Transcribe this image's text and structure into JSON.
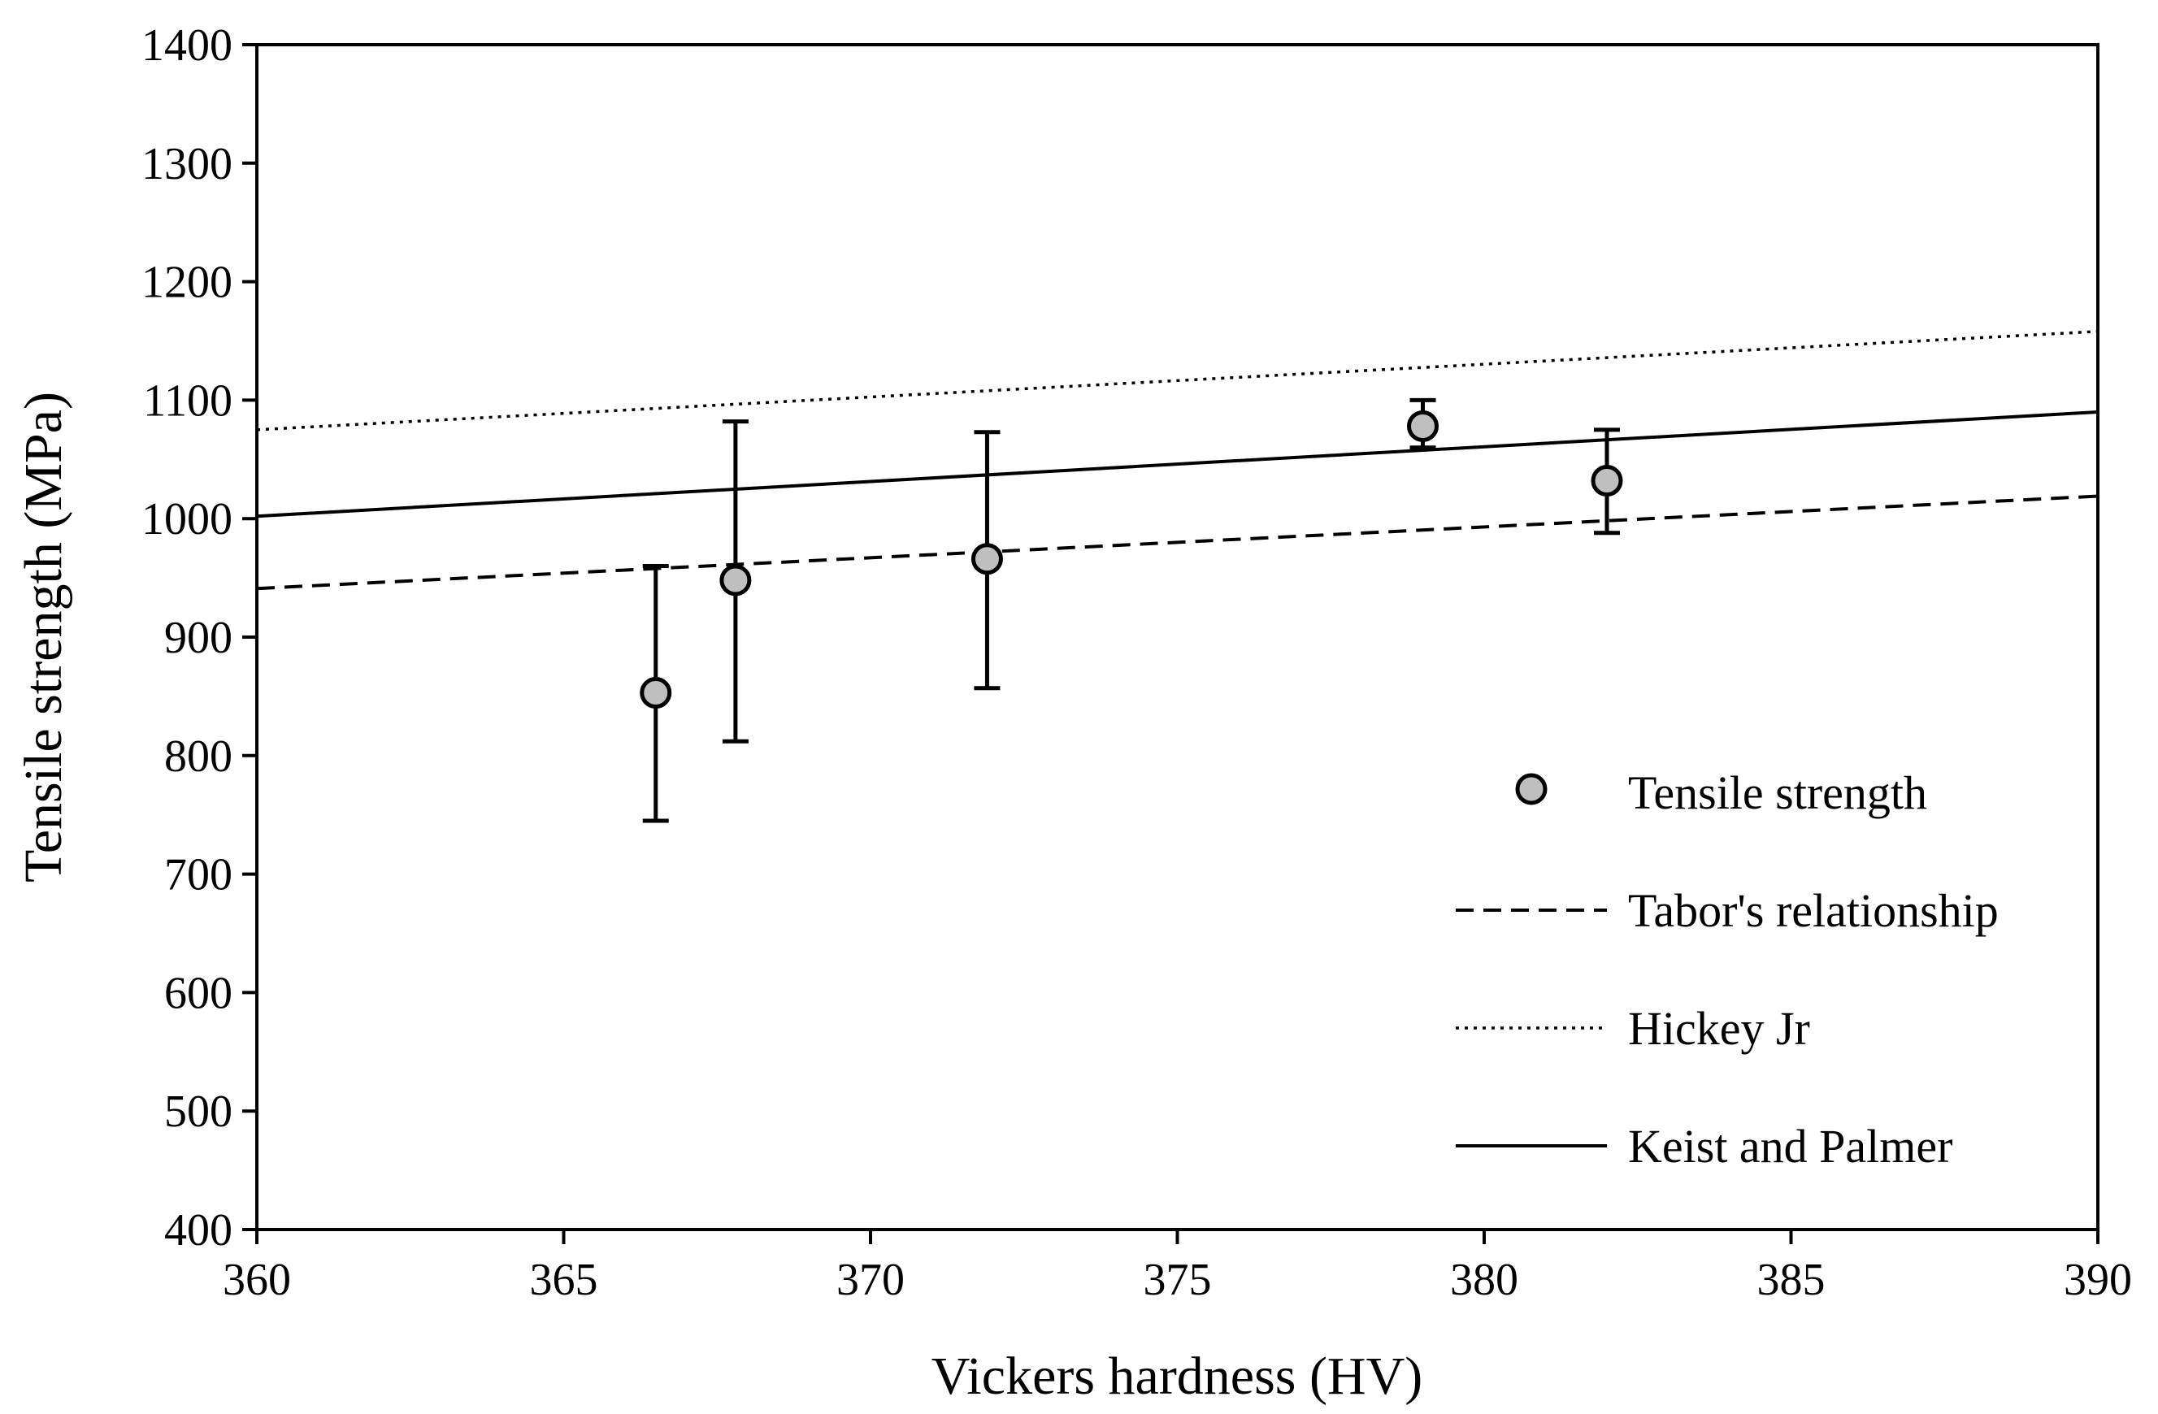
{
  "chart_data": {
    "type": "scatter",
    "xlabel": "Vickers hardness (HV)",
    "ylabel": "Tensile strength (MPa)",
    "xlim": [
      360,
      390
    ],
    "ylim": [
      400,
      1400
    ],
    "xticks": [
      360,
      365,
      370,
      375,
      380,
      385,
      390
    ],
    "yticks": [
      400,
      500,
      600,
      700,
      800,
      900,
      1000,
      1100,
      1200,
      1300,
      1400
    ],
    "grid": false,
    "legend_position": "bottom-right",
    "series": [
      {
        "name": "Tensile strength",
        "kind": "points",
        "marker": "circle",
        "marker_fill": "#bfbfbf",
        "marker_edge": "#000000",
        "points": [
          {
            "x": 366.5,
            "y": 853,
            "err_low": 745,
            "err_high": 960
          },
          {
            "x": 367.8,
            "y": 948,
            "err_low": 812,
            "err_high": 1082
          },
          {
            "x": 371.9,
            "y": 966,
            "err_low": 857,
            "err_high": 1073
          },
          {
            "x": 379.0,
            "y": 1078,
            "err_low": 1060,
            "err_high": 1100
          },
          {
            "x": 382.0,
            "y": 1032,
            "err_low": 988,
            "err_high": 1075
          }
        ]
      },
      {
        "name": "Tabor's relationship",
        "kind": "line",
        "style": "dashed",
        "points": [
          {
            "x": 360,
            "y": 941
          },
          {
            "x": 390,
            "y": 1019
          }
        ]
      },
      {
        "name": "Hickey Jr",
        "kind": "line",
        "style": "dotted",
        "points": [
          {
            "x": 360,
            "y": 1075
          },
          {
            "x": 390,
            "y": 1158
          }
        ]
      },
      {
        "name": "Keist and Palmer",
        "kind": "line",
        "style": "solid",
        "points": [
          {
            "x": 360,
            "y": 1002
          },
          {
            "x": 390,
            "y": 1090
          }
        ]
      }
    ]
  }
}
